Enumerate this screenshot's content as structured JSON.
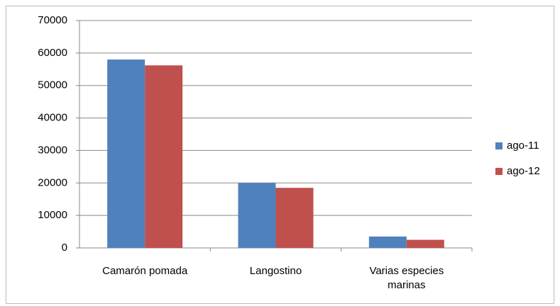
{
  "chart_data": {
    "type": "bar",
    "categories": [
      "Camarón pomada",
      "Langostino",
      "Varias especies marinas"
    ],
    "series": [
      {
        "name": "ago-11",
        "color": "#4f81bd",
        "values": [
          58000,
          20000,
          3500
        ]
      },
      {
        "name": "ago-12",
        "color": "#c0504d",
        "values": [
          56200,
          18500,
          2500
        ]
      }
    ],
    "ylim": [
      0,
      70000
    ],
    "yticks": [
      0,
      10000,
      20000,
      30000,
      40000,
      50000,
      60000,
      70000
    ],
    "grid": true,
    "legend": "right"
  }
}
